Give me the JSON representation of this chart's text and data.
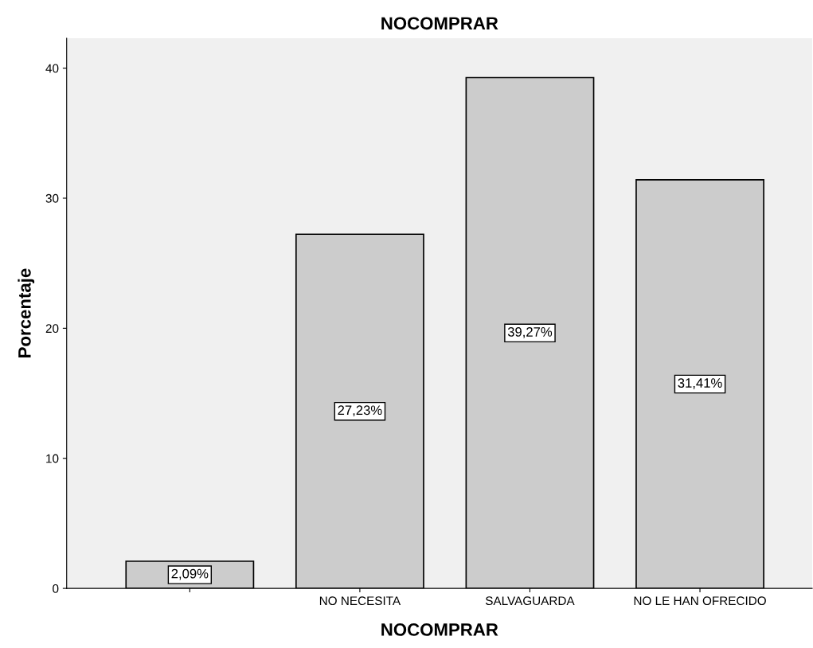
{
  "chart_data": {
    "type": "bar",
    "title": "NOCOMPRAR",
    "xlabel": "NOCOMPRAR",
    "ylabel": "Porcentaje",
    "categories": [
      null,
      "NO NECESITA",
      "SALVAGUARDA",
      "NO LE HAN OFRECIDO"
    ],
    "values": [
      2.09,
      27.23,
      39.27,
      31.41
    ],
    "value_labels": [
      "2,09%",
      "27,23%",
      "39,27%",
      "31,41%"
    ],
    "color": "#cccccc",
    "ylim": [
      0,
      42.3
    ],
    "yticks": [
      0,
      10,
      20,
      30,
      40
    ],
    "grid": false
  }
}
